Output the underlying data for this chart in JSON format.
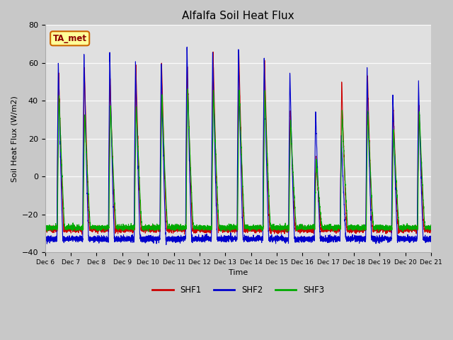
{
  "title": "Alfalfa Soil Heat Flux",
  "ylabel": "Soil Heat Flux (W/m2)",
  "xlabel": "Time",
  "ylim": [
    -40,
    80
  ],
  "annotation_text": "TA_met",
  "shf1_color": "#cc0000",
  "shf2_color": "#0000cc",
  "shf3_color": "#00aa00",
  "fig_facecolor": "#c8c8c8",
  "ax_facecolor": "#e0e0e0",
  "tick_labels": [
    "Dec 6",
    "Dec 7",
    "Dec 8",
    "Dec 9",
    "Dec 10",
    "Dec 11",
    "Dec 12",
    "Dec 13",
    "Dec 14",
    "Dec 15",
    "Dec 16",
    "Dec 17",
    "Dec 18",
    "Dec 19",
    "Dec 20",
    "Dec 21"
  ],
  "n_days": 15,
  "ppd": 288,
  "legend_labels": [
    "SHF1",
    "SHF2",
    "SHF3"
  ],
  "peaks1": [
    55,
    58,
    51,
    59,
    60,
    59,
    67,
    67,
    63,
    35,
    10,
    49,
    55,
    38,
    38
  ],
  "peaks2": [
    61,
    65,
    65,
    61,
    61,
    70,
    67,
    68,
    63,
    56,
    35,
    22,
    57,
    43,
    50
  ],
  "peaks3": [
    43,
    33,
    38,
    38,
    43,
    46,
    46,
    46,
    45,
    30,
    8,
    34,
    35,
    25,
    35
  ],
  "night1": -28,
  "night2": -33,
  "night3": -27,
  "linewidth": 0.8
}
